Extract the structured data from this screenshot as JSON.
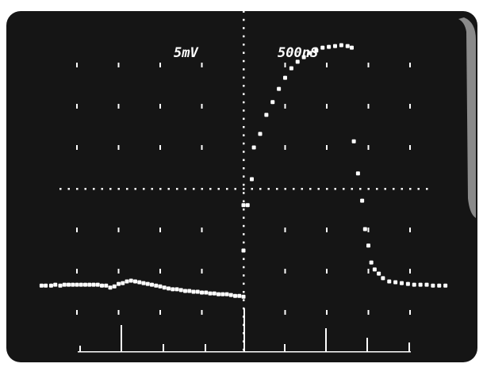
{
  "chart_data": {
    "type": "scatter",
    "title": "",
    "xlabel": "",
    "ylabel": "",
    "volts_per_div_label": "5mV",
    "time_per_div_label": "500nS",
    "grid": true,
    "grid_style": "oscilloscope graticule",
    "xlim": [
      -5,
      5
    ],
    "ylim": [
      -4,
      4
    ],
    "divisions": {
      "x": 10,
      "y": 8
    },
    "colors": {
      "background": "#151515",
      "trace": "#ffffff",
      "frame": "#ffffff"
    },
    "series": [
      {
        "x": [
          -4.85,
          -4.75,
          -4.62,
          -4.52,
          -4.4,
          -4.3,
          -4.2,
          -4.1,
          -4.0,
          -3.9,
          -3.8,
          -3.7,
          -3.6,
          -3.5,
          -3.4,
          -3.3,
          -3.2,
          -3.1,
          -3.0,
          -2.9,
          -2.8,
          -2.7,
          -2.6,
          -2.5,
          -2.4,
          -2.3,
          -2.2,
          -2.1,
          -2.0,
          -1.9,
          -1.8,
          -1.7,
          -1.6,
          -1.5,
          -1.4,
          -1.3,
          -1.2,
          -1.1,
          -1.0,
          -0.9,
          -0.8,
          -0.7,
          -0.6,
          -0.5,
          -0.4,
          -0.3,
          -0.2,
          -0.1,
          0.0,
          0.0,
          0.0,
          0.1,
          0.2,
          0.25,
          0.4,
          0.55,
          0.7,
          0.85,
          1.0,
          1.15,
          1.3,
          1.45,
          1.6,
          1.75,
          1.9,
          2.05,
          2.2,
          2.35,
          2.5,
          2.6,
          2.65,
          2.75,
          2.85,
          2.92,
          3.0,
          3.07,
          3.15,
          3.25,
          3.35,
          3.5,
          3.65,
          3.8,
          3.95,
          4.1,
          4.25,
          4.4,
          4.55,
          4.7,
          4.85
        ],
        "y": [
          -2.35,
          -2.35,
          -2.35,
          -2.33,
          -2.35,
          -2.33,
          -2.33,
          -2.33,
          -2.33,
          -2.33,
          -2.33,
          -2.33,
          -2.33,
          -2.33,
          -2.35,
          -2.35,
          -2.4,
          -2.37,
          -2.31,
          -2.29,
          -2.25,
          -2.23,
          -2.25,
          -2.27,
          -2.29,
          -2.31,
          -2.33,
          -2.35,
          -2.37,
          -2.4,
          -2.42,
          -2.44,
          -2.44,
          -2.46,
          -2.48,
          -2.48,
          -2.5,
          -2.5,
          -2.52,
          -2.52,
          -2.54,
          -2.54,
          -2.56,
          -2.56,
          -2.56,
          -2.58,
          -2.6,
          -2.6,
          -2.62,
          -1.5,
          -0.4,
          -0.4,
          0.23,
          1.0,
          1.33,
          1.79,
          2.1,
          2.42,
          2.69,
          2.92,
          3.08,
          3.19,
          3.29,
          3.35,
          3.42,
          3.44,
          3.46,
          3.48,
          3.46,
          3.42,
          1.15,
          0.37,
          -0.29,
          -0.98,
          -1.38,
          -1.79,
          -1.96,
          -2.06,
          -2.17,
          -2.25,
          -2.27,
          -2.29,
          -2.31,
          -2.33,
          -2.33,
          -2.33,
          -2.35,
          -2.35,
          -2.35
        ]
      }
    ]
  }
}
